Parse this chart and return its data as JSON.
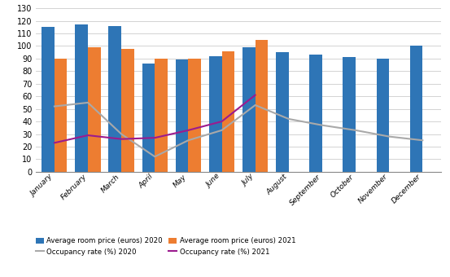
{
  "months": [
    "January",
    "February",
    "March",
    "April",
    "May",
    "June",
    "July",
    "August",
    "September",
    "October",
    "November",
    "December"
  ],
  "price_2020": [
    115,
    117,
    116,
    86,
    89,
    92,
    99,
    95,
    93,
    91,
    90,
    100
  ],
  "price_2021": [
    90,
    99,
    98,
    90,
    90,
    96,
    105,
    null,
    null,
    null,
    null,
    null
  ],
  "occ_2020": [
    52,
    55,
    30,
    12,
    25,
    33,
    53,
    42,
    37,
    33,
    28,
    25
  ],
  "occ_2021": [
    23,
    29,
    26,
    27,
    33,
    40,
    61,
    null,
    null,
    null,
    null,
    null
  ],
  "color_2020": "#2E75B6",
  "color_2021": "#ED7D31",
  "color_occ_2020": "#A9A9A9",
  "color_occ_2021": "#9B1B8E",
  "ylim": [
    0,
    130
  ],
  "legend_labels": [
    "Average room price (euros) 2020",
    "Average room price (euros) 2021",
    "Occupancy rate (%) 2020",
    "Occupancy rate (%) 2021"
  ],
  "background_color": "#FFFFFF",
  "grid_color": "#CCCCCC"
}
